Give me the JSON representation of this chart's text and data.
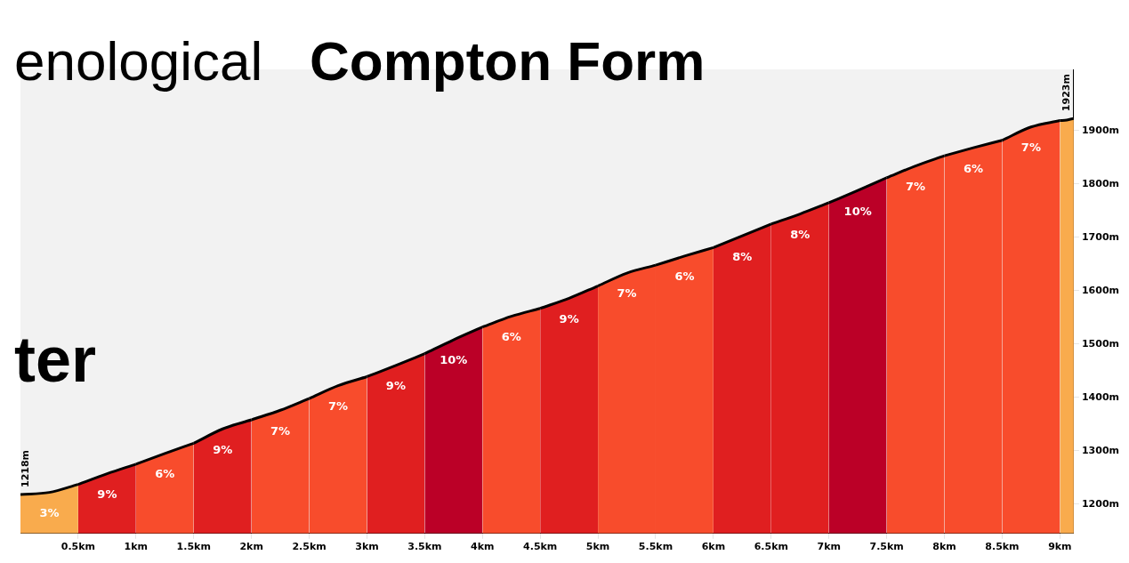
{
  "chart_data": {
    "type": "area",
    "xlim": [
      0,
      9.12
    ],
    "ylim": [
      1145,
      2015
    ],
    "xticks": [
      {
        "value": 0.5,
        "label": "0.5km"
      },
      {
        "value": 1,
        "label": "1km"
      },
      {
        "value": 1.5,
        "label": "1.5km"
      },
      {
        "value": 2,
        "label": "2km"
      },
      {
        "value": 2.5,
        "label": "2.5km"
      },
      {
        "value": 3,
        "label": "3km"
      },
      {
        "value": 3.5,
        "label": "3.5km"
      },
      {
        "value": 4,
        "label": "4km"
      },
      {
        "value": 4.5,
        "label": "4.5km"
      },
      {
        "value": 5,
        "label": "5km"
      },
      {
        "value": 5.5,
        "label": "5.5km"
      },
      {
        "value": 6,
        "label": "6km"
      },
      {
        "value": 6.5,
        "label": "6.5km"
      },
      {
        "value": 7,
        "label": "7km"
      },
      {
        "value": 7.5,
        "label": "7.5km"
      },
      {
        "value": 8,
        "label": "8km"
      },
      {
        "value": 8.5,
        "label": "8.5km"
      },
      {
        "value": 9,
        "label": "9km"
      }
    ],
    "yticks": [
      {
        "value": 1200,
        "label": "1200m"
      },
      {
        "value": 1300,
        "label": "1300m"
      },
      {
        "value": 1400,
        "label": "1400m"
      },
      {
        "value": 1500,
        "label": "1500m"
      },
      {
        "value": 1600,
        "label": "1600m"
      },
      {
        "value": 1700,
        "label": "1700m"
      },
      {
        "value": 1800,
        "label": "1800m"
      },
      {
        "value": 1900,
        "label": "1900m"
      }
    ],
    "grid": false,
    "legend": false,
    "series": [
      {
        "type": "area",
        "color": "#f9ab4d",
        "x": [
          0,
          0.25,
          0.5
        ],
        "values": [
          1218,
          1222,
          1237
        ]
      },
      {
        "type": "area",
        "color": "#e01f20",
        "x": [
          0.5,
          0.75,
          1
        ],
        "values": [
          1237,
          1257,
          1275
        ]
      },
      {
        "type": "area",
        "color": "#f84c2c",
        "x": [
          1,
          1.25,
          1.5
        ],
        "values": [
          1275,
          1295,
          1314
        ]
      },
      {
        "type": "area",
        "color": "#e01f20",
        "x": [
          1.5,
          1.75,
          2
        ],
        "values": [
          1314,
          1341,
          1358
        ]
      },
      {
        "type": "area",
        "color": "#f84c2c",
        "x": [
          2,
          2.25,
          2.5
        ],
        "values": [
          1358,
          1376,
          1398
        ]
      },
      {
        "type": "area",
        "color": "#f84c2c",
        "x": [
          2.5,
          2.75,
          3
        ],
        "values": [
          1398,
          1422,
          1439
        ]
      },
      {
        "type": "area",
        "color": "#e01f20",
        "x": [
          3,
          3.25,
          3.5
        ],
        "values": [
          1439,
          1460,
          1482
        ]
      },
      {
        "type": "area",
        "color": "#bb0027",
        "x": [
          3.5,
          3.75,
          4
        ],
        "values": [
          1482,
          1508,
          1532
        ]
      },
      {
        "type": "area",
        "color": "#f84c2c",
        "x": [
          4,
          4.25,
          4.5
        ],
        "values": [
          1532,
          1552,
          1567
        ]
      },
      {
        "type": "area",
        "color": "#e01f20",
        "x": [
          4.5,
          4.75,
          5
        ],
        "values": [
          1567,
          1586,
          1609
        ]
      },
      {
        "type": "area",
        "color": "#f84c2c",
        "x": [
          5,
          5.25,
          5.5
        ],
        "values": [
          1609,
          1633,
          1648
        ]
      },
      {
        "type": "area",
        "color": "#f84c2c",
        "x": [
          5.5,
          5.75,
          6
        ],
        "values": [
          1648,
          1665,
          1681
        ]
      },
      {
        "type": "area",
        "color": "#e01f20",
        "x": [
          6,
          6.25,
          6.5
        ],
        "values": [
          1681,
          1703,
          1725
        ]
      },
      {
        "type": "area",
        "color": "#e01f20",
        "x": [
          6.5,
          6.75,
          7
        ],
        "values": [
          1725,
          1744,
          1765
        ]
      },
      {
        "type": "area",
        "color": "#bb0027",
        "x": [
          7,
          7.25,
          7.5
        ],
        "values": [
          1765,
          1788,
          1812
        ]
      },
      {
        "type": "area",
        "color": "#f84c2c",
        "x": [
          7.5,
          7.75,
          8
        ],
        "values": [
          1812,
          1834,
          1853
        ]
      },
      {
        "type": "area",
        "color": "#f84c2c",
        "x": [
          8,
          8.25,
          8.5
        ],
        "values": [
          1853,
          1868,
          1882
        ]
      },
      {
        "type": "area",
        "color": "#f84c2c",
        "x": [
          8.5,
          8.75,
          9
        ],
        "values": [
          1882,
          1907,
          1919
        ]
      },
      {
        "type": "area",
        "color": "#f9ab4d",
        "x": [
          9,
          9.06,
          9.12
        ],
        "values": [
          1919,
          1920,
          1923
        ]
      }
    ],
    "annotations": [
      {
        "text": "3%",
        "x": 0.25,
        "y": 1222
      },
      {
        "text": "9%",
        "x": 0.75,
        "y": 1257
      },
      {
        "text": "6%",
        "x": 1.25,
        "y": 1295
      },
      {
        "text": "9%",
        "x": 1.75,
        "y": 1341
      },
      {
        "text": "7%",
        "x": 2.25,
        "y": 1376
      },
      {
        "text": "7%",
        "x": 2.75,
        "y": 1422
      },
      {
        "text": "9%",
        "x": 3.25,
        "y": 1460
      },
      {
        "text": "10%",
        "x": 3.75,
        "y": 1508
      },
      {
        "text": "6%",
        "x": 4.25,
        "y": 1552
      },
      {
        "text": "9%",
        "x": 4.75,
        "y": 1586
      },
      {
        "text": "7%",
        "x": 5.25,
        "y": 1633
      },
      {
        "text": "6%",
        "x": 5.75,
        "y": 1665
      },
      {
        "text": "8%",
        "x": 6.25,
        "y": 1703
      },
      {
        "text": "8%",
        "x": 6.75,
        "y": 1744
      },
      {
        "text": "10%",
        "x": 7.25,
        "y": 1788
      },
      {
        "text": "7%",
        "x": 7.75,
        "y": 1834
      },
      {
        "text": "6%",
        "x": 8.25,
        "y": 1868
      },
      {
        "text": "7%",
        "x": 8.75,
        "y": 1907
      },
      {
        "text": "1218m",
        "x": 0,
        "y": 1218
      },
      {
        "text": "1923m",
        "x": 9.12,
        "y": 1923
      },
      "enological",
      "Compton Form",
      "ter"
    ]
  }
}
